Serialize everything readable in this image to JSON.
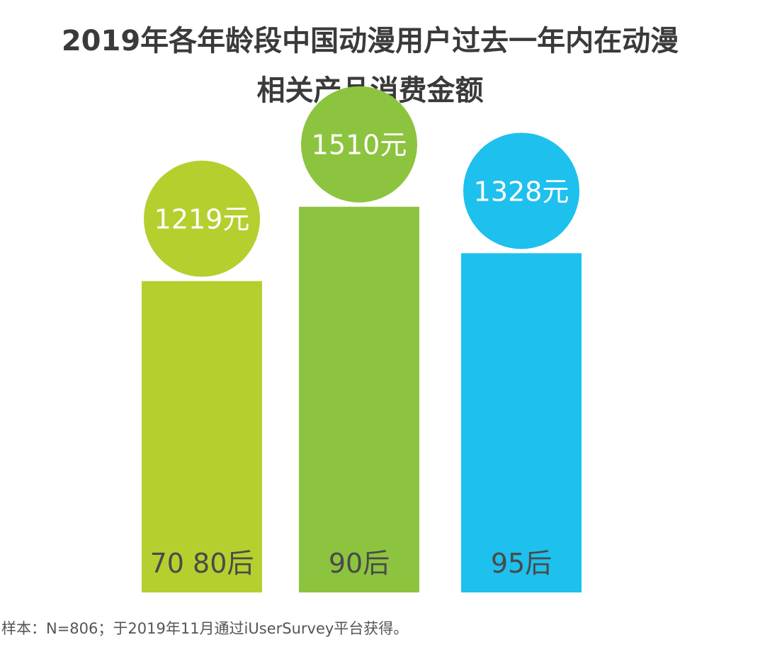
{
  "chart_data": {
    "type": "bar",
    "title_line1": "2019年各年龄段中国动漫用户过去一年内在动漫",
    "title_line2": "相关产品消费金额",
    "categories": [
      "70 80后",
      "90后",
      "95后"
    ],
    "values": [
      1219,
      1510,
      1328
    ],
    "value_labels": [
      "1219元",
      "1510元",
      "1328元"
    ],
    "unit": "元",
    "colors": [
      "#b5cf2f",
      "#8cc43f",
      "#1ec0ed"
    ],
    "ylim": [
      0,
      1820
    ],
    "grid": false,
    "legend": "none"
  },
  "footnote": "样本：N=806；于2019年11月通过iUserSurvey平台获得。"
}
